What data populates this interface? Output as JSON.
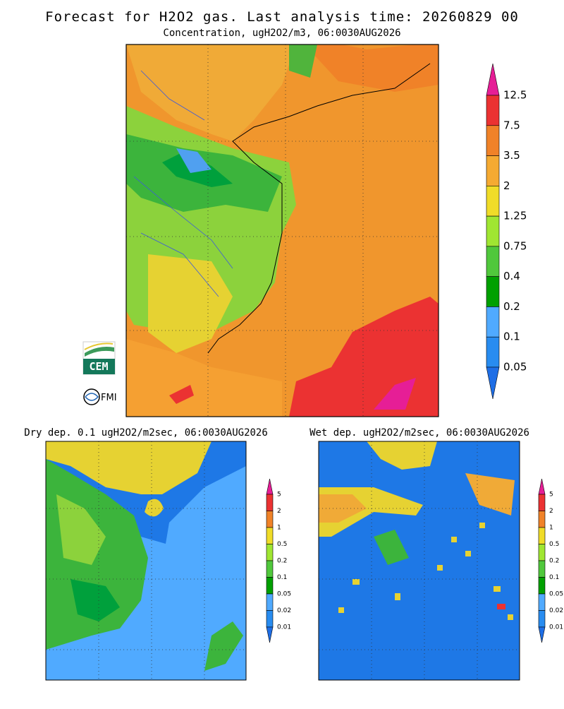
{
  "header": {
    "title": "Forecast for H2O2 gas. Last analysis time: 20260829 00",
    "subtitle": "Concentration, ugH2O2/m3, 06:0030AUG2026"
  },
  "logos": [
    "CEM",
    "FMI"
  ],
  "panels": [
    {
      "colorbar": {
        "labels": [
          "12.5",
          "7.5",
          "3.5",
          "2",
          "1.25",
          "0.75",
          "0.4",
          "0.2",
          "0.1",
          "0.05"
        ],
        "colors": [
          "#e61e96",
          "#eb3232",
          "#f08228",
          "#f5aa32",
          "#f0dc28",
          "#a0e632",
          "#50c83c",
          "#00a000",
          "#50aaff",
          "#288cf0",
          "#1e6ee6"
        ]
      }
    },
    {
      "title": "Dry dep. 0.1 ugH2O2/m2sec, 06:0030AUG2026",
      "colorbar": {
        "labels": [
          "5",
          "2",
          "1",
          "0.5",
          "0.2",
          "0.1",
          "0.05",
          "0.02",
          "0.01"
        ],
        "colors": [
          "#e61e96",
          "#eb3232",
          "#f08228",
          "#f0dc28",
          "#a0e632",
          "#50c83c",
          "#00a000",
          "#50aaff",
          "#288cf0",
          "#1e6ee6"
        ]
      }
    },
    {
      "title": "Wet dep. ugH2O2/m2sec, 06:0030AUG2026",
      "colorbar": {
        "labels": [
          "5",
          "2",
          "1",
          "0.5",
          "0.2",
          "0.1",
          "0.05",
          "0.02",
          "0.01"
        ],
        "colors": [
          "#e61e96",
          "#eb3232",
          "#f08228",
          "#f0dc28",
          "#a0e632",
          "#50c83c",
          "#00a000",
          "#50aaff",
          "#288cf0",
          "#1e6ee6"
        ]
      }
    }
  ]
}
